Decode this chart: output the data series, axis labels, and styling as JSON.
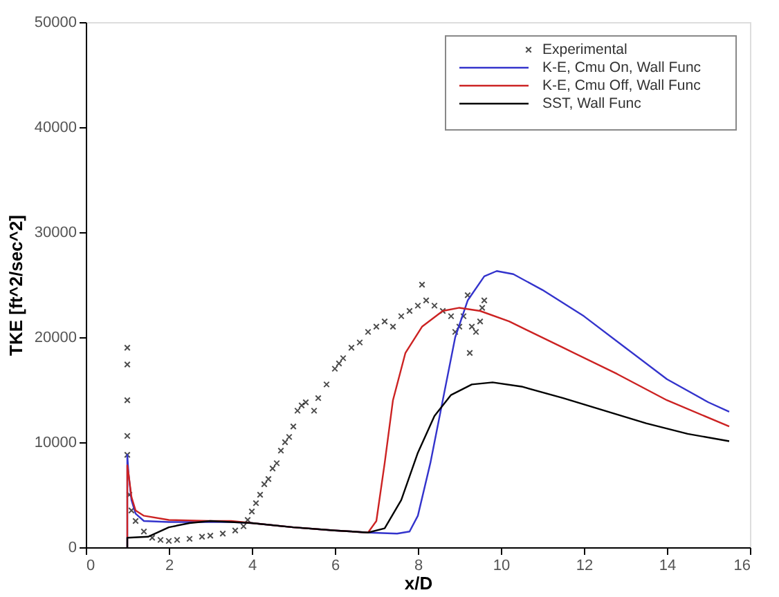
{
  "chart_data": {
    "type": "line",
    "xlabel": "x/D",
    "ylabel": "TKE [ft^2/sec^2]",
    "xlim": [
      0,
      16
    ],
    "ylim": [
      0,
      50000
    ],
    "xticks": [
      0,
      2,
      4,
      6,
      8,
      10,
      12,
      14,
      16
    ],
    "yticks": [
      0,
      10000,
      20000,
      30000,
      40000,
      50000
    ],
    "grid": false,
    "legend": "top right",
    "line_style": "solid",
    "series": [
      {
        "name": "Experimental",
        "type": "scatter",
        "marker": "cross",
        "color": "#000000",
        "x": [
          1.0,
          1.0,
          1.0,
          1.0,
          1.0,
          1.05,
          1.1,
          1.2,
          1.4,
          1.6,
          1.8,
          2.0,
          2.2,
          2.5,
          2.8,
          3.0,
          3.3,
          3.6,
          3.8,
          3.9,
          4.0,
          4.1,
          4.2,
          4.3,
          4.4,
          4.5,
          4.6,
          4.7,
          4.8,
          4.9,
          5.0,
          5.1,
          5.2,
          5.3,
          5.5,
          5.6,
          5.8,
          6.0,
          6.1,
          6.2,
          6.4,
          6.6,
          6.8,
          7.0,
          7.2,
          7.4,
          7.6,
          7.8,
          8.0,
          8.1,
          8.2,
          8.4,
          8.6,
          8.8,
          8.9,
          9.0,
          9.1,
          9.2,
          9.25,
          9.3,
          9.4,
          9.5,
          9.55,
          9.6
        ],
        "values": [
          19000,
          17400,
          14000,
          10600,
          8800,
          5000,
          3500,
          2500,
          1500,
          900,
          700,
          600,
          700,
          800,
          1000,
          1100,
          1300,
          1600,
          2000,
          2600,
          3400,
          4200,
          5000,
          6000,
          6500,
          7500,
          8000,
          9200,
          10000,
          10500,
          11500,
          13000,
          13500,
          13800,
          13000,
          14200,
          15500,
          17000,
          17500,
          18000,
          19000,
          19500,
          20500,
          21000,
          21500,
          21000,
          22000,
          22500,
          23000,
          25000,
          23500,
          23000,
          22500,
          22000,
          20500,
          21000,
          22000,
          24000,
          18500,
          21000,
          20500,
          21500,
          22800,
          23500
        ]
      },
      {
        "name": "K-E, Cmu On, Wall Func",
        "color": "#3333cc",
        "x": [
          1.0,
          1.0,
          1.03,
          1.1,
          1.2,
          1.4,
          2.0,
          3.0,
          3.5,
          4.0,
          5.0,
          6.0,
          6.8,
          7.5,
          7.8,
          8.0,
          8.3,
          8.6,
          8.9,
          9.2,
          9.6,
          9.9,
          10.3,
          11.0,
          12.0,
          13.0,
          14.0,
          15.0,
          15.5
        ],
        "values": [
          0,
          8800,
          7000,
          4500,
          3200,
          2500,
          2400,
          2400,
          2400,
          2300,
          1900,
          1600,
          1400,
          1300,
          1500,
          3000,
          8000,
          14000,
          20000,
          23500,
          25800,
          26300,
          26000,
          24500,
          22000,
          19000,
          16000,
          13800,
          12900
        ]
      },
      {
        "name": "K-E, Cmu Off, Wall Func",
        "color": "#cc2222",
        "x": [
          1.0,
          1.0,
          1.03,
          1.1,
          1.2,
          1.4,
          2.0,
          3.0,
          3.5,
          4.0,
          5.0,
          6.0,
          6.8,
          7.0,
          7.2,
          7.4,
          7.7,
          8.1,
          8.6,
          9.0,
          9.5,
          10.2,
          11.5,
          12.8,
          14.0,
          15.5
        ],
        "values": [
          0,
          7800,
          7000,
          4800,
          3500,
          3000,
          2600,
          2500,
          2500,
          2300,
          1900,
          1600,
          1400,
          2500,
          8000,
          14000,
          18500,
          21000,
          22500,
          22800,
          22500,
          21500,
          19000,
          16500,
          14000,
          11500
        ]
      },
      {
        "name": "SST, Wall Func",
        "color": "#000000",
        "x": [
          1.0,
          1.0,
          1.5,
          2.0,
          2.5,
          3.0,
          3.5,
          4.0,
          5.0,
          6.0,
          6.8,
          7.2,
          7.6,
          8.0,
          8.4,
          8.8,
          9.3,
          9.8,
          10.5,
          11.5,
          12.5,
          13.5,
          14.5,
          15.5
        ],
        "values": [
          0,
          900,
          1000,
          1900,
          2300,
          2500,
          2400,
          2300,
          1900,
          1600,
          1400,
          1800,
          4500,
          9000,
          12500,
          14500,
          15500,
          15700,
          15300,
          14200,
          13000,
          11800,
          10800,
          10100
        ]
      }
    ]
  }
}
